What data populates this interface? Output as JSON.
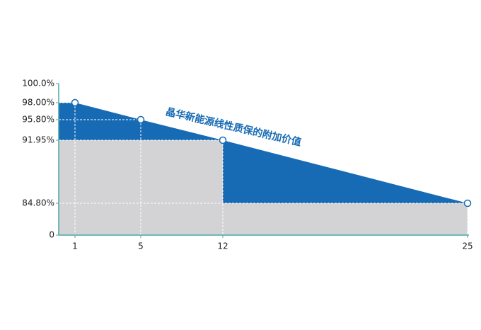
{
  "chart_data": {
    "type": "area",
    "annotation": "晶华新能源线性质保的附加价值",
    "xlim": [
      0,
      25
    ],
    "xticks": [
      1,
      5,
      12,
      25
    ],
    "ylim": [
      0,
      100
    ],
    "yticks": [
      {
        "value": 100,
        "label": "100.0%"
      },
      {
        "value": 98,
        "label": "98.00%"
      },
      {
        "value": 95.8,
        "label": "95.80%"
      },
      {
        "value": 91.95,
        "label": "91.95%"
      },
      {
        "value": 84.8,
        "label": "84.80%"
      },
      0
    ],
    "axis_color": "#4aa7a3",
    "series": [
      {
        "color": "#176bb4",
        "style": "linear",
        "x": [
          1,
          5,
          12,
          25
        ],
        "values": [
          98,
          95.8,
          91.95,
          84.8
        ]
      },
      {
        "color": "#d3d3d5",
        "style": "step",
        "x": [
          0,
          12,
          25
        ],
        "values": [
          91.95,
          84.8,
          84.8
        ]
      }
    ]
  }
}
